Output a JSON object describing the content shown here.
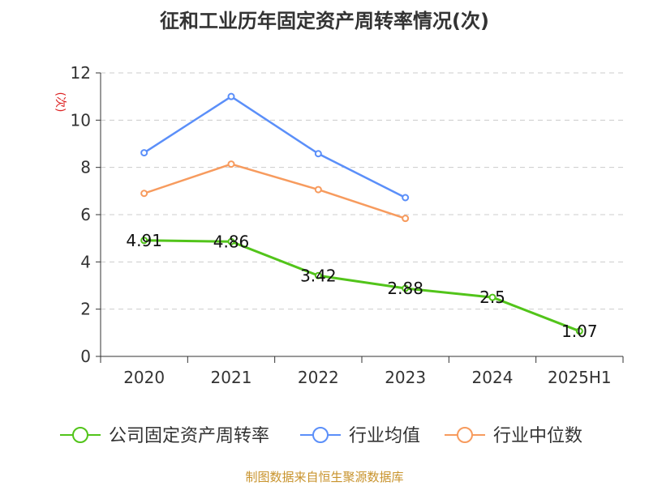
{
  "chart_data": {
    "type": "line",
    "title": "征和工业历年固定资产周转率情况(次)",
    "ylabel": "(次)",
    "categories": [
      "2020",
      "2021",
      "2022",
      "2023",
      "2024",
      "2025H1"
    ],
    "ylim": [
      0,
      12
    ],
    "yticks": [
      "0",
      "2",
      "4",
      "6",
      "8",
      "10",
      "12"
    ],
    "grid": true,
    "legend_position": "bottom",
    "series": [
      {
        "name": "公司固定资产周转率",
        "color": "#52c41a",
        "values": [
          4.91,
          4.86,
          3.42,
          2.88,
          2.5,
          1.07
        ],
        "labels": [
          "4.91",
          "4.86",
          "3.42",
          "2.88",
          "2.5",
          "1.07"
        ]
      },
      {
        "name": "行业均值",
        "color": "#5b8ff9",
        "values": [
          8.62,
          11.0,
          8.58,
          6.72,
          null,
          null
        ]
      },
      {
        "name": "行业中位数",
        "color": "#f79b5e",
        "values": [
          6.9,
          8.14,
          7.06,
          5.84,
          null,
          null
        ]
      }
    ],
    "source": "制图数据来自恒生聚源数据库"
  }
}
